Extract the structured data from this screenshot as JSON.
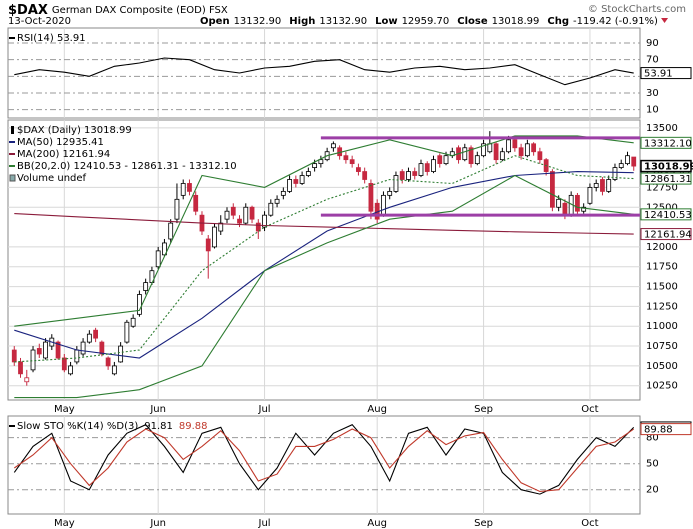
{
  "header": {
    "symbol": "$DAX",
    "name": "German DAX Composite (EOD) FSX",
    "date": "13-Oct-2020",
    "quotes": [
      {
        "label": "Open",
        "value": "13132.90"
      },
      {
        "label": "High",
        "value": "13132.90"
      },
      {
        "label": "Low",
        "value": "12959.70"
      },
      {
        "label": "Close",
        "value": "13018.99"
      },
      {
        "label": "Chg",
        "value": "-119.42 (-0.91%)"
      }
    ],
    "credit": "© StockCharts.com"
  },
  "chart_data": [
    {
      "type": "line",
      "xlim": [
        -1,
        100
      ],
      "ylim": [
        0,
        108
      ],
      "yticks": [
        10,
        30,
        70,
        90
      ],
      "ref_lines": [
        50
      ],
      "grid": true,
      "series": [
        {
          "name": "RSI(14) 53.91",
          "color": "#000000",
          "x": [
            0,
            4,
            8,
            12,
            16,
            20,
            24,
            28,
            32,
            36,
            40,
            44,
            48,
            52,
            56,
            60,
            64,
            68,
            72,
            76,
            80,
            84,
            88,
            92,
            96,
            99
          ],
          "values": [
            52,
            58,
            55,
            50,
            62,
            66,
            72,
            70,
            58,
            54,
            60,
            62,
            68,
            70,
            58,
            55,
            60,
            62,
            58,
            60,
            64,
            52,
            40,
            48,
            58,
            53.91
          ]
        }
      ]
    },
    {
      "type": "candlestick",
      "title": "$DAX (Daily) 13018.99",
      "xlim": [
        -1,
        100
      ],
      "xticks": [
        {
          "value": 8,
          "label": "May"
        },
        {
          "value": 23,
          "label": "Jun"
        },
        {
          "value": 40,
          "label": "Jul"
        },
        {
          "value": 58,
          "label": "Aug"
        },
        {
          "value": 75,
          "label": "Sep"
        },
        {
          "value": 92,
          "label": "Oct"
        }
      ],
      "ylim": [
        10070,
        13600
      ],
      "yticks": [
        10250,
        10500,
        10750,
        11000,
        11250,
        11500,
        11750,
        12000,
        12500,
        12750,
        13500
      ],
      "grid": true,
      "up_color": "#000000",
      "down_color": "#c62840",
      "candles": [
        [
          10700,
          10750,
          10500,
          10550
        ],
        [
          10550,
          10600,
          10350,
          10400
        ],
        [
          10300,
          10450,
          10250,
          10350
        ],
        [
          10450,
          10750,
          10420,
          10700
        ],
        [
          10720,
          10780,
          10600,
          10650
        ],
        [
          10600,
          10850,
          10580,
          10800
        ],
        [
          10750,
          10900,
          10700,
          10850
        ],
        [
          10800,
          10820,
          10580,
          10600
        ],
        [
          10600,
          10650,
          10420,
          10450
        ],
        [
          10400,
          10550,
          10380,
          10500
        ],
        [
          10550,
          10750,
          10520,
          10700
        ],
        [
          10650,
          10850,
          10620,
          10800
        ],
        [
          10800,
          10950,
          10780,
          10900
        ],
        [
          10950,
          10980,
          10800,
          10850
        ],
        [
          10800,
          10820,
          10620,
          10650
        ],
        [
          10600,
          10620,
          10450,
          10500
        ],
        [
          10400,
          10550,
          10380,
          10500
        ],
        [
          10550,
          10800,
          10540,
          10750
        ],
        [
          10800,
          11080,
          10780,
          11050
        ],
        [
          11000,
          11150,
          10980,
          11100
        ],
        [
          11150,
          11450,
          11120,
          11400
        ],
        [
          11450,
          11600,
          11400,
          11550
        ],
        [
          11550,
          11750,
          11520,
          11700
        ],
        [
          11750,
          12000,
          11720,
          11950
        ],
        [
          11900,
          12100,
          11880,
          12050
        ],
        [
          12100,
          12350,
          12050,
          12300
        ],
        [
          12350,
          12800,
          12300,
          12600
        ],
        [
          12650,
          12850,
          12600,
          12800
        ],
        [
          12800,
          12850,
          12650,
          12700
        ],
        [
          12650,
          12700,
          12400,
          12450
        ],
        [
          12400,
          12450,
          12150,
          12200
        ],
        [
          12100,
          12150,
          11600,
          11950
        ],
        [
          12000,
          12300,
          11980,
          12250
        ],
        [
          12200,
          12400,
          12150,
          12300
        ],
        [
          12350,
          12500,
          12300,
          12450
        ],
        [
          12500,
          12550,
          12350,
          12400
        ],
        [
          12350,
          12400,
          12250,
          12300
        ],
        [
          12300,
          12550,
          12280,
          12500
        ],
        [
          12500,
          12520,
          12300,
          12350
        ],
        [
          12300,
          12350,
          12100,
          12200
        ],
        [
          12250,
          12450,
          12200,
          12400
        ],
        [
          12400,
          12600,
          12380,
          12550
        ],
        [
          12550,
          12650,
          12500,
          12600
        ],
        [
          12650,
          12750,
          12600,
          12700
        ],
        [
          12700,
          12900,
          12680,
          12850
        ],
        [
          12850,
          12900,
          12750,
          12800
        ],
        [
          12800,
          12950,
          12780,
          12900
        ],
        [
          12900,
          13000,
          12880,
          12950
        ],
        [
          13000,
          13100,
          12950,
          13050
        ],
        [
          13050,
          13150,
          13000,
          13100
        ],
        [
          13100,
          13250,
          13080,
          13200
        ],
        [
          13250,
          13330,
          13200,
          13300
        ],
        [
          13250,
          13280,
          13100,
          13150
        ],
        [
          13150,
          13200,
          13050,
          13100
        ],
        [
          13100,
          13150,
          13000,
          13050
        ],
        [
          13000,
          13050,
          12900,
          12950
        ],
        [
          12950,
          13000,
          12800,
          12850
        ],
        [
          12800,
          12850,
          12350,
          12450
        ],
        [
          12550,
          12600,
          12300,
          12350
        ],
        [
          12400,
          12700,
          12380,
          12650
        ],
        [
          12650,
          12750,
          12600,
          12700
        ],
        [
          12700,
          12950,
          12680,
          12900
        ],
        [
          12950,
          12980,
          12800,
          12850
        ],
        [
          12850,
          13000,
          12820,
          12950
        ],
        [
          12950,
          13000,
          12850,
          12900
        ],
        [
          12900,
          13100,
          12880,
          13050
        ],
        [
          13050,
          13080,
          12900,
          12950
        ],
        [
          12950,
          13150,
          12930,
          13100
        ],
        [
          13150,
          13180,
          13000,
          13050
        ],
        [
          13050,
          13200,
          13030,
          13150
        ],
        [
          13150,
          13250,
          13120,
          13200
        ],
        [
          13250,
          13280,
          13050,
          13100
        ],
        [
          13100,
          13300,
          13080,
          13250
        ],
        [
          13250,
          13280,
          13000,
          13050
        ],
        [
          13050,
          13200,
          13030,
          13150
        ],
        [
          13150,
          13350,
          13130,
          13300
        ],
        [
          13200,
          13460,
          13180,
          13300
        ],
        [
          13300,
          13320,
          13050,
          13100
        ],
        [
          13100,
          13250,
          13080,
          13200
        ],
        [
          13200,
          13400,
          13180,
          13350
        ],
        [
          13350,
          13380,
          13200,
          13250
        ],
        [
          13250,
          13300,
          13100,
          13150
        ],
        [
          13150,
          13350,
          13130,
          13300
        ],
        [
          13300,
          13320,
          13150,
          13200
        ],
        [
          13200,
          13250,
          13050,
          13100
        ],
        [
          13100,
          13120,
          12900,
          12950
        ],
        [
          12950,
          12980,
          12450,
          12500
        ],
        [
          12500,
          12650,
          12450,
          12600
        ],
        [
          12550,
          12600,
          12350,
          12400
        ],
        [
          12400,
          12700,
          12380,
          12650
        ],
        [
          12650,
          12680,
          12400,
          12450
        ],
        [
          12450,
          12550,
          12420,
          12500
        ],
        [
          12550,
          12800,
          12530,
          12750
        ],
        [
          12750,
          12850,
          12700,
          12800
        ],
        [
          12850,
          12880,
          12650,
          12700
        ],
        [
          12700,
          12900,
          12680,
          12850
        ],
        [
          12850,
          13050,
          12830,
          13000
        ],
        [
          13000,
          13100,
          12980,
          13050
        ],
        [
          13050,
          13200,
          13030,
          13150
        ],
        [
          13132.9,
          13132.9,
          12959.7,
          13018.99
        ]
      ],
      "series": [
        {
          "name": "MA(50) 12935.41",
          "color": "#1a237e",
          "x": [
            0,
            10,
            20,
            30,
            40,
            50,
            60,
            70,
            80,
            90,
            99
          ],
          "values": [
            10950,
            10700,
            10600,
            11100,
            11700,
            12200,
            12500,
            12750,
            12900,
            12950,
            12935.41
          ],
          "value_labels": [
            null,
            null,
            null,
            null,
            null,
            null,
            null,
            null,
            null,
            null,
            "12935.41"
          ]
        },
        {
          "name": "MA(200) 12161.94",
          "color": "#8b1c3b",
          "x": [
            0,
            10,
            20,
            30,
            40,
            50,
            60,
            70,
            80,
            90,
            99
          ],
          "values": [
            12420,
            12380,
            12340,
            12300,
            12270,
            12250,
            12230,
            12210,
            12190,
            12175,
            12161.94
          ],
          "value_labels": [
            null,
            null,
            null,
            null,
            null,
            null,
            null,
            null,
            null,
            null,
            "12161.94"
          ]
        },
        {
          "name": "BB(20,2.0) 12410.53 - 12861.31 - 13312.10",
          "color": "#2e7d32",
          "dash": true,
          "x": [
            0,
            10,
            20,
            30,
            40,
            50,
            60,
            70,
            80,
            90,
            99
          ],
          "values": [
            10550,
            10600,
            10700,
            11700,
            12250,
            12600,
            12850,
            12800,
            13150,
            12900,
            12861.31
          ],
          "value_labels": [
            null,
            null,
            null,
            null,
            null,
            null,
            null,
            null,
            null,
            null,
            "12861.31"
          ]
        },
        {
          "color": "#2e7d32",
          "x": [
            0,
            10,
            20,
            30,
            40,
            50,
            60,
            70,
            80,
            90,
            99
          ],
          "values": [
            11000,
            11100,
            11200,
            12900,
            12750,
            13150,
            13350,
            13150,
            13400,
            13400,
            13312.1
          ],
          "value_labels": [
            null,
            null,
            null,
            null,
            null,
            null,
            null,
            null,
            null,
            null,
            "13312.10"
          ]
        },
        {
          "color": "#2e7d32",
          "x": [
            0,
            10,
            20,
            30,
            40,
            50,
            60,
            70,
            80,
            90,
            99
          ],
          "values": [
            10100,
            10100,
            10200,
            10500,
            11700,
            12050,
            12350,
            12450,
            12900,
            12500,
            12410.53
          ],
          "value_labels": [
            null,
            null,
            null,
            null,
            null,
            null,
            null,
            null,
            null,
            null,
            "12410.53"
          ]
        }
      ],
      "levels": [
        {
          "value": 13375,
          "from": 49,
          "color": "#9c3fa6"
        },
        {
          "value": 12400,
          "from": 49,
          "color": "#9c3fa6"
        }
      ],
      "volume_label": "Volume undef"
    },
    {
      "type": "line",
      "title": "Slow STO %K(14) %D(3)",
      "xlim": [
        -1,
        100
      ],
      "xticks": [
        {
          "value": 8,
          "label": "May"
        },
        {
          "value": 23,
          "label": "Jun"
        },
        {
          "value": 40,
          "label": "Jul"
        },
        {
          "value": 58,
          "label": "Aug"
        },
        {
          "value": 75,
          "label": "Sep"
        },
        {
          "value": 92,
          "label": "Oct"
        }
      ],
      "ylim": [
        -8,
        105
      ],
      "yticks": [
        20,
        50,
        80
      ],
      "grid": true,
      "series": [
        {
          "color": "#000000",
          "x": [
            0,
            3,
            6,
            9,
            12,
            15,
            18,
            21,
            24,
            27,
            30,
            33,
            36,
            39,
            42,
            45,
            48,
            51,
            54,
            57,
            60,
            63,
            66,
            69,
            72,
            75,
            78,
            81,
            84,
            87,
            90,
            93,
            96,
            99
          ],
          "values": [
            40,
            70,
            85,
            30,
            20,
            60,
            85,
            95,
            70,
            40,
            85,
            92,
            50,
            20,
            45,
            85,
            60,
            85,
            95,
            70,
            30,
            85,
            92,
            60,
            90,
            85,
            40,
            20,
            15,
            25,
            55,
            80,
            70,
            91.81
          ]
        },
        {
          "color": "#c0392b",
          "x": [
            0,
            3,
            6,
            9,
            12,
            15,
            18,
            21,
            24,
            27,
            30,
            33,
            36,
            39,
            42,
            45,
            48,
            51,
            54,
            57,
            60,
            63,
            66,
            69,
            72,
            75,
            78,
            81,
            84,
            87,
            90,
            93,
            96,
            99
          ],
          "values": [
            45,
            60,
            80,
            50,
            25,
            45,
            75,
            90,
            80,
            55,
            70,
            88,
            65,
            30,
            38,
            70,
            70,
            78,
            90,
            80,
            45,
            70,
            88,
            72,
            82,
            86,
            55,
            28,
            18,
            20,
            45,
            70,
            75,
            89.88
          ]
        }
      ]
    }
  ]
}
